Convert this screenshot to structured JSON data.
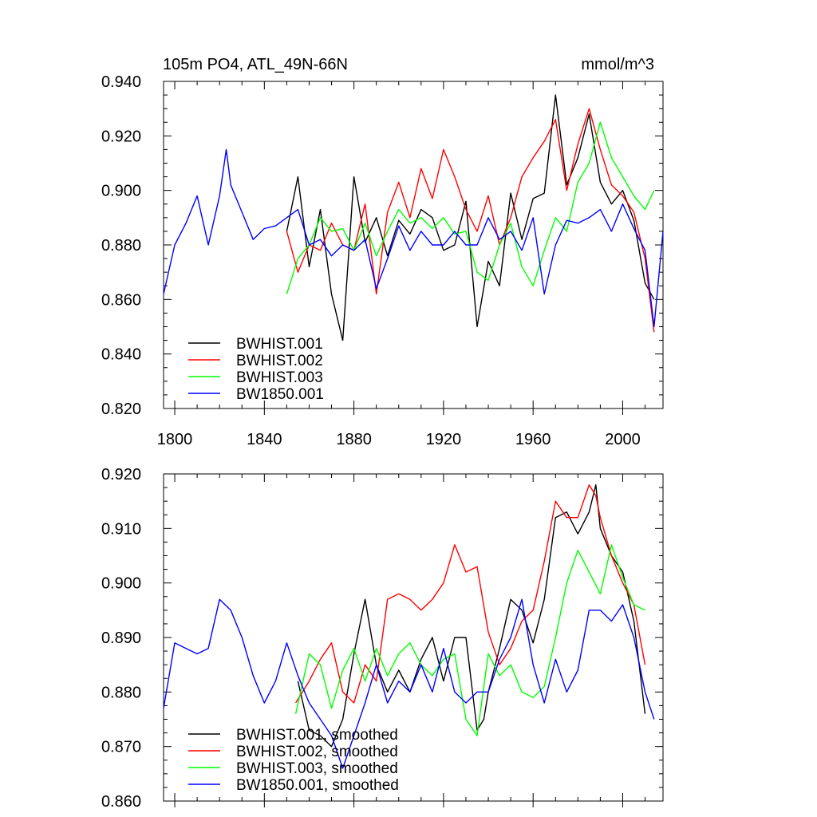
{
  "chart_data": [
    {
      "type": "line",
      "title": "105m PO4, ATL_49N-66N",
      "units": "mmol/m^3",
      "xlabel": "",
      "ylabel": "",
      "xlim": [
        1795,
        2018
      ],
      "ylim": [
        0.82,
        0.94
      ],
      "xticks": [
        1800,
        1840,
        1880,
        1920,
        1960,
        2000
      ],
      "yticks": [
        0.82,
        0.84,
        0.86,
        0.88,
        0.9,
        0.92,
        0.94
      ],
      "xtick_labels": [
        "1800",
        "1840",
        "1880",
        "1920",
        "1960",
        "2000"
      ],
      "ytick_labels": [
        "0.820",
        "0.840",
        "0.860",
        "0.880",
        "0.900",
        "0.920",
        "0.940"
      ],
      "legend_position": "bottom-left",
      "series": [
        {
          "name": "BWHIST.001",
          "color": "#000000",
          "x": [
            1850,
            1855,
            1860,
            1865,
            1870,
            1875,
            1880,
            1885,
            1890,
            1895,
            1900,
            1905,
            1910,
            1915,
            1920,
            1925,
            1930,
            1935,
            1940,
            1945,
            1950,
            1955,
            1960,
            1965,
            1970,
            1975,
            1980,
            1985,
            1990,
            1995,
            2000,
            2005,
            2010,
            2014
          ],
          "values": [
            0.885,
            0.905,
            0.872,
            0.893,
            0.862,
            0.845,
            0.905,
            0.881,
            0.89,
            0.876,
            0.889,
            0.884,
            0.893,
            0.89,
            0.878,
            0.88,
            0.896,
            0.85,
            0.874,
            0.865,
            0.899,
            0.882,
            0.897,
            0.899,
            0.935,
            0.902,
            0.912,
            0.928,
            0.903,
            0.895,
            0.9,
            0.889,
            0.866,
            0.86
          ]
        },
        {
          "name": "BWHIST.002",
          "color": "#ff0000",
          "x": [
            1850,
            1855,
            1860,
            1865,
            1870,
            1875,
            1880,
            1885,
            1890,
            1895,
            1900,
            1905,
            1910,
            1915,
            1920,
            1925,
            1930,
            1935,
            1940,
            1945,
            1950,
            1955,
            1960,
            1965,
            1970,
            1975,
            1980,
            1985,
            1990,
            1995,
            2000,
            2005,
            2010,
            2014
          ],
          "values": [
            0.885,
            0.87,
            0.88,
            0.878,
            0.888,
            0.88,
            0.878,
            0.895,
            0.862,
            0.892,
            0.903,
            0.89,
            0.908,
            0.897,
            0.915,
            0.905,
            0.893,
            0.885,
            0.898,
            0.88,
            0.89,
            0.905,
            0.912,
            0.918,
            0.926,
            0.9,
            0.917,
            0.93,
            0.915,
            0.902,
            0.898,
            0.892,
            0.875,
            0.848
          ]
        },
        {
          "name": "BWHIST.003",
          "color": "#00ff00",
          "x": [
            1850,
            1855,
            1860,
            1865,
            1870,
            1875,
            1880,
            1885,
            1890,
            1895,
            1900,
            1905,
            1910,
            1915,
            1920,
            1925,
            1930,
            1935,
            1940,
            1945,
            1950,
            1955,
            1960,
            1965,
            1970,
            1975,
            1980,
            1985,
            1990,
            1995,
            2000,
            2005,
            2010,
            2014
          ],
          "values": [
            0.862,
            0.875,
            0.88,
            0.89,
            0.885,
            0.886,
            0.878,
            0.888,
            0.876,
            0.885,
            0.893,
            0.888,
            0.89,
            0.886,
            0.89,
            0.884,
            0.885,
            0.87,
            0.867,
            0.88,
            0.888,
            0.872,
            0.865,
            0.878,
            0.89,
            0.885,
            0.903,
            0.91,
            0.925,
            0.912,
            0.905,
            0.898,
            0.893,
            0.9
          ]
        },
        {
          "name": "BW1850.001",
          "color": "#0000ff",
          "x": [
            1795,
            1800,
            1805,
            1810,
            1815,
            1820,
            1823,
            1825,
            1830,
            1835,
            1840,
            1845,
            1850,
            1855,
            1860,
            1865,
            1870,
            1875,
            1880,
            1885,
            1890,
            1895,
            1900,
            1905,
            1910,
            1915,
            1920,
            1925,
            1930,
            1935,
            1940,
            1945,
            1950,
            1955,
            1960,
            1965,
            1970,
            1975,
            1980,
            1985,
            1990,
            1995,
            2000,
            2005,
            2010,
            2014,
            2018
          ],
          "values": [
            0.862,
            0.88,
            0.888,
            0.898,
            0.88,
            0.898,
            0.915,
            0.902,
            0.892,
            0.882,
            0.886,
            0.887,
            0.89,
            0.893,
            0.88,
            0.882,
            0.876,
            0.88,
            0.878,
            0.882,
            0.864,
            0.875,
            0.887,
            0.878,
            0.885,
            0.88,
            0.88,
            0.885,
            0.88,
            0.88,
            0.89,
            0.882,
            0.885,
            0.878,
            0.89,
            0.862,
            0.88,
            0.889,
            0.888,
            0.89,
            0.893,
            0.885,
            0.895,
            0.886,
            0.878,
            0.85,
            0.885
          ]
        }
      ]
    },
    {
      "type": "line",
      "title": "",
      "xlim": [
        1795,
        2018
      ],
      "ylim": [
        0.86,
        0.92
      ],
      "xticks": [
        1800,
        1840,
        1880,
        1920,
        1960,
        2000
      ],
      "yticks": [
        0.86,
        0.87,
        0.88,
        0.89,
        0.9,
        0.91,
        0.92
      ],
      "ytick_labels": [
        "0.860",
        "0.870",
        "0.880",
        "0.890",
        "0.900",
        "0.910",
        "0.920"
      ],
      "legend_position": "bottom-left",
      "series": [
        {
          "name": "BWHIST.001, smoothed",
          "color": "#000000",
          "x": [
            1855,
            1860,
            1865,
            1870,
            1875,
            1880,
            1885,
            1890,
            1895,
            1900,
            1905,
            1910,
            1915,
            1920,
            1925,
            1930,
            1935,
            1938,
            1940,
            1945,
            1950,
            1955,
            1960,
            1965,
            1970,
            1975,
            1980,
            1985,
            1988,
            1990,
            1995,
            2000,
            2005,
            2010
          ],
          "values": [
            0.882,
            0.873,
            0.872,
            0.87,
            0.875,
            0.887,
            0.897,
            0.885,
            0.88,
            0.884,
            0.88,
            0.886,
            0.89,
            0.882,
            0.89,
            0.89,
            0.873,
            0.875,
            0.88,
            0.888,
            0.897,
            0.895,
            0.889,
            0.897,
            0.912,
            0.913,
            0.909,
            0.913,
            0.918,
            0.91,
            0.905,
            0.902,
            0.893,
            0.876
          ]
        },
        {
          "name": "BWHIST.002, smoothed",
          "color": "#ff0000",
          "x": [
            1854,
            1860,
            1865,
            1870,
            1875,
            1880,
            1885,
            1890,
            1895,
            1900,
            1905,
            1910,
            1915,
            1920,
            1925,
            1930,
            1935,
            1940,
            1945,
            1950,
            1955,
            1960,
            1965,
            1970,
            1975,
            1980,
            1985,
            1988,
            1990,
            1995,
            2000,
            2005,
            2010
          ],
          "values": [
            0.878,
            0.882,
            0.886,
            0.889,
            0.88,
            0.878,
            0.885,
            0.882,
            0.897,
            0.898,
            0.897,
            0.895,
            0.897,
            0.9,
            0.907,
            0.902,
            0.903,
            0.891,
            0.885,
            0.888,
            0.893,
            0.895,
            0.904,
            0.915,
            0.912,
            0.912,
            0.918,
            0.916,
            0.912,
            0.905,
            0.9,
            0.896,
            0.885
          ]
        },
        {
          "name": "BWHIST.003, smoothed",
          "color": "#00ff00",
          "x": [
            1854,
            1860,
            1865,
            1870,
            1875,
            1880,
            1885,
            1890,
            1895,
            1900,
            1905,
            1910,
            1915,
            1920,
            1925,
            1930,
            1935,
            1940,
            1945,
            1950,
            1955,
            1960,
            1965,
            1970,
            1975,
            1980,
            1985,
            1990,
            1995,
            2000,
            2005,
            2010
          ],
          "values": [
            0.876,
            0.887,
            0.885,
            0.877,
            0.884,
            0.888,
            0.882,
            0.888,
            0.883,
            0.887,
            0.889,
            0.885,
            0.883,
            0.886,
            0.887,
            0.875,
            0.872,
            0.887,
            0.883,
            0.885,
            0.88,
            0.879,
            0.881,
            0.89,
            0.9,
            0.906,
            0.902,
            0.898,
            0.907,
            0.901,
            0.896,
            0.895
          ]
        },
        {
          "name": "BW1850.001, smoothed",
          "color": "#0000ff",
          "x": [
            1795,
            1800,
            1805,
            1810,
            1815,
            1820,
            1825,
            1830,
            1835,
            1840,
            1845,
            1850,
            1855,
            1860,
            1865,
            1870,
            1875,
            1880,
            1885,
            1890,
            1895,
            1900,
            1905,
            1910,
            1915,
            1920,
            1925,
            1930,
            1935,
            1940,
            1945,
            1950,
            1955,
            1960,
            1965,
            1970,
            1975,
            1980,
            1985,
            1990,
            1995,
            2000,
            2005,
            2010,
            2014
          ],
          "values": [
            0.877,
            0.889,
            0.888,
            0.887,
            0.888,
            0.897,
            0.895,
            0.89,
            0.883,
            0.878,
            0.882,
            0.889,
            0.883,
            0.878,
            0.875,
            0.872,
            0.866,
            0.872,
            0.878,
            0.885,
            0.878,
            0.882,
            0.88,
            0.885,
            0.88,
            0.888,
            0.88,
            0.878,
            0.88,
            0.88,
            0.886,
            0.89,
            0.897,
            0.885,
            0.878,
            0.886,
            0.88,
            0.884,
            0.895,
            0.895,
            0.893,
            0.896,
            0.89,
            0.88,
            0.875
          ]
        }
      ]
    }
  ]
}
